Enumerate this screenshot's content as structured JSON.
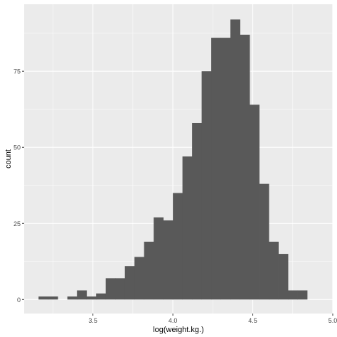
{
  "chart_data": {
    "type": "bar",
    "title": "",
    "xlabel": "log(weight.kg.)",
    "ylabel": "count",
    "grid": true,
    "xlim": [
      3.07,
      5.0
    ],
    "ylim": [
      -4.6,
      97
    ],
    "x_ticks": [
      3.5,
      4.0,
      4.5,
      5.0
    ],
    "x_tick_labels": [
      "3.5",
      "4.0",
      "4.5",
      "5.0"
    ],
    "y_ticks": [
      0,
      25,
      50,
      75
    ],
    "y_tick_labels": [
      "0",
      "25",
      "50",
      "75"
    ],
    "bins": [
      {
        "x0": 3.16,
        "x1": 3.22,
        "count": 1
      },
      {
        "x0": 3.22,
        "x1": 3.28,
        "count": 1
      },
      {
        "x0": 3.28,
        "x1": 3.34,
        "count": 0
      },
      {
        "x0": 3.34,
        "x1": 3.4,
        "count": 1
      },
      {
        "x0": 3.4,
        "x1": 3.46,
        "count": 3
      },
      {
        "x0": 3.46,
        "x1": 3.52,
        "count": 1
      },
      {
        "x0": 3.52,
        "x1": 3.58,
        "count": 2
      },
      {
        "x0": 3.58,
        "x1": 3.64,
        "count": 7
      },
      {
        "x0": 3.64,
        "x1": 3.7,
        "count": 7
      },
      {
        "x0": 3.7,
        "x1": 3.76,
        "count": 11
      },
      {
        "x0": 3.76,
        "x1": 3.82,
        "count": 14
      },
      {
        "x0": 3.82,
        "x1": 3.88,
        "count": 19
      },
      {
        "x0": 3.88,
        "x1": 3.94,
        "count": 27
      },
      {
        "x0": 3.94,
        "x1": 4.0,
        "count": 26
      },
      {
        "x0": 4.0,
        "x1": 4.06,
        "count": 35
      },
      {
        "x0": 4.06,
        "x1": 4.12,
        "count": 47
      },
      {
        "x0": 4.12,
        "x1": 4.18,
        "count": 58
      },
      {
        "x0": 4.18,
        "x1": 4.24,
        "count": 75
      },
      {
        "x0": 4.24,
        "x1": 4.3,
        "count": 86
      },
      {
        "x0": 4.3,
        "x1": 4.36,
        "count": 86
      },
      {
        "x0": 4.36,
        "x1": 4.42,
        "count": 92
      },
      {
        "x0": 4.42,
        "x1": 4.48,
        "count": 87
      },
      {
        "x0": 4.48,
        "x1": 4.54,
        "count": 64
      },
      {
        "x0": 4.54,
        "x1": 4.6,
        "count": 38
      },
      {
        "x0": 4.6,
        "x1": 4.66,
        "count": 19
      },
      {
        "x0": 4.66,
        "x1": 4.72,
        "count": 15
      },
      {
        "x0": 4.72,
        "x1": 4.78,
        "count": 3
      },
      {
        "x0": 4.78,
        "x1": 4.84,
        "count": 3
      }
    ],
    "colors": {
      "panel": "#ebebeb",
      "grid_major": "#ffffff",
      "bar": "#595959",
      "tick_text": "#4d4d4d",
      "axis_title": "#000000"
    }
  }
}
